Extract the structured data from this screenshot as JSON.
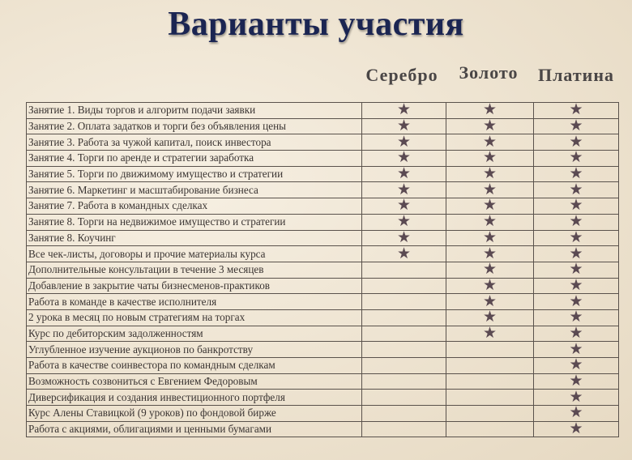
{
  "title": "Варианты участия",
  "columns": [
    "Серебро",
    "Золото",
    "Платина"
  ],
  "star_icon": "star-icon",
  "star_color": "#5b4a52",
  "rows": [
    {
      "label": "Занятие 1. Виды торгов и алгоритм подачи заявки",
      "included": [
        true,
        true,
        true
      ]
    },
    {
      "label": "Занятие 2. Оплата задатков и торги без объявления цены",
      "included": [
        true,
        true,
        true
      ]
    },
    {
      "label": "Занятие 3. Работа за чужой капитал, поиск инвестора",
      "included": [
        true,
        true,
        true
      ]
    },
    {
      "label": "Занятие 4. Торги по аренде и стратегии заработка",
      "included": [
        true,
        true,
        true
      ]
    },
    {
      "label": "Занятие 5. Торги по движимому имущество и стратегии",
      "included": [
        true,
        true,
        true
      ]
    },
    {
      "label": "Занятие 6. Маркетинг и масштабирование бизнеса",
      "included": [
        true,
        true,
        true
      ]
    },
    {
      "label": "Занятие 7. Работа в командных сделках",
      "included": [
        true,
        true,
        true
      ]
    },
    {
      "label": "Занятие 8. Торги на недвижимое имущество и стратегии",
      "included": [
        true,
        true,
        true
      ]
    },
    {
      "label": "Занятие 8. Коучинг",
      "included": [
        true,
        true,
        true
      ]
    },
    {
      "label": "Все чек-листы, договоры и прочие материалы курса",
      "included": [
        true,
        true,
        true
      ]
    },
    {
      "label": "Дополнительные консультации в течение 3 месяцев",
      "included": [
        false,
        true,
        true
      ]
    },
    {
      "label": "Добавление в закрытие чаты бизнесменов-практиков",
      "included": [
        false,
        true,
        true
      ]
    },
    {
      "label": "Работа в команде в качестве исполнителя",
      "included": [
        false,
        true,
        true
      ]
    },
    {
      "label": "2 урока в месяц по новым стратегиям на торгах",
      "included": [
        false,
        true,
        true
      ]
    },
    {
      "label": "Курс по дебиторским задолженностям",
      "included": [
        false,
        true,
        true
      ]
    },
    {
      "label": "Углубленное изучение аукционов по банкротству",
      "included": [
        false,
        false,
        true
      ]
    },
    {
      "label": "Работа в качестве соинвестора по командным сделкам",
      "included": [
        false,
        false,
        true
      ]
    },
    {
      "label": "Возможность созвониться с Евгением Федоровым",
      "included": [
        false,
        false,
        true
      ]
    },
    {
      "label": "Диверсификация и создания инвестиционного портфеля",
      "included": [
        false,
        false,
        true
      ]
    },
    {
      "label": "Курс Алены Ставицкой (9 уроков) по фондовой бирже",
      "included": [
        false,
        false,
        true
      ]
    },
    {
      "label": "Работа с акциями, облигациями и ценными бумагами",
      "included": [
        false,
        false,
        true
      ]
    }
  ]
}
